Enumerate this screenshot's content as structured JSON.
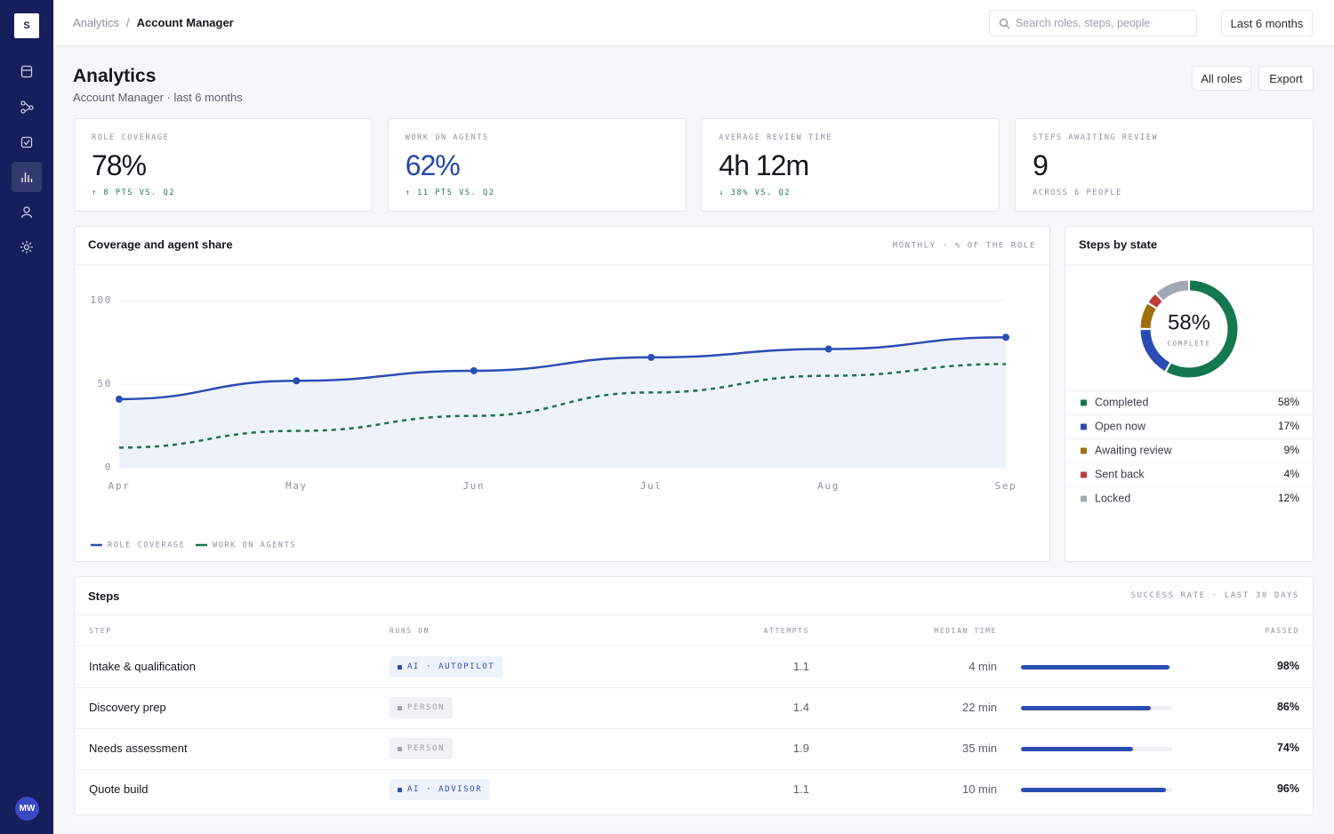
{
  "sidebar": {
    "logo": "S",
    "avatar": "MW"
  },
  "topbar": {
    "breadcrumb": [
      "Analytics",
      "Account Manager"
    ],
    "separator": "/",
    "search_placeholder": "Search roles, steps, people",
    "range_button": "Last 6 months"
  },
  "header": {
    "title": "Analytics",
    "subtitle": "Account Manager · last 6 months",
    "buttons": [
      "All roles",
      "Export"
    ]
  },
  "kpis": [
    {
      "label": "ROLE COVERAGE",
      "value": "78%",
      "delta": "↑ 8 PTS VS. Q2",
      "value_color": "#16181d",
      "delta_color": "#127a4e"
    },
    {
      "label": "WORK ON AGENTS",
      "value": "62%",
      "delta": "↑ 11 PTS VS. Q2",
      "value_color": "#2447a8",
      "delta_color": "#127a4e"
    },
    {
      "label": "AVERAGE REVIEW TIME",
      "value": "4h 12m",
      "delta": "↓ 38% VS. Q2",
      "value_color": "#16181d",
      "delta_color": "#127a4e"
    },
    {
      "label": "STEPS AWAITING REVIEW",
      "value": "9",
      "delta": "ACROSS 6 PEOPLE",
      "value_color": "#16181d",
      "delta_color": "#8c919c"
    }
  ],
  "chart_data": [
    {
      "type": "line",
      "title": "Coverage and agent share",
      "subtitle": "MONTHLY · % OF THE ROLE",
      "categories": [
        "Apr",
        "May",
        "Jun",
        "Jul",
        "Aug",
        "Sep"
      ],
      "series": [
        {
          "name": "ROLE COVERAGE",
          "color": "#2b4db3",
          "values": [
            41,
            52,
            58,
            66,
            71,
            78
          ]
        },
        {
          "name": "WORK ON AGENTS",
          "color": "#17744c",
          "values": [
            12,
            22,
            31,
            45,
            55,
            62
          ]
        }
      ],
      "ylim": [
        0,
        100
      ],
      "yticks": [
        0,
        50,
        100
      ],
      "grid": true
    },
    {
      "type": "pie",
      "title": "Steps by state",
      "center_value": "58%",
      "center_label": "COMPLETE",
      "categories": [
        "Completed",
        "Open now",
        "Awaiting review",
        "Sent back",
        "Locked"
      ],
      "values": [
        58,
        17,
        9,
        4,
        12
      ],
      "value_labels": [
        "58%",
        "17%",
        "9%",
        "4%",
        "12%"
      ],
      "colors": [
        "#13784f",
        "#2b4db3",
        "#a06f10",
        "#c23a3a",
        "#a2a8b5"
      ]
    }
  ],
  "steps": {
    "title": "Steps",
    "subtitle": "SUCCESS RATE · LAST 30 DAYS",
    "columns": [
      "STEP",
      "RUNS ON",
      "ATTEMPTS",
      "MEDIAN TIME",
      "PASSED"
    ],
    "rows": [
      {
        "step": "Intake & qualification",
        "runs_on": "AI · AUTOPILOT",
        "badge_color": "#2b4db3",
        "attempts": 1.1,
        "median_time": "4 min",
        "passed": 98,
        "passed_label": "98%"
      },
      {
        "step": "Discovery prep",
        "runs_on": "PERSON",
        "badge_color": "#9aa0ab",
        "attempts": 1.4,
        "median_time": "22 min",
        "passed": 86,
        "passed_label": "86%"
      },
      {
        "step": "Needs assessment",
        "runs_on": "PERSON",
        "badge_color": "#9aa0ab",
        "attempts": 1.9,
        "median_time": "35 min",
        "passed": 74,
        "passed_label": "74%"
      },
      {
        "step": "Quote build",
        "runs_on": "AI · ADVISOR",
        "badge_color": "#2b4db3",
        "attempts": 1.1,
        "median_time": "10 min",
        "passed": 96,
        "passed_label": "96%"
      }
    ]
  }
}
